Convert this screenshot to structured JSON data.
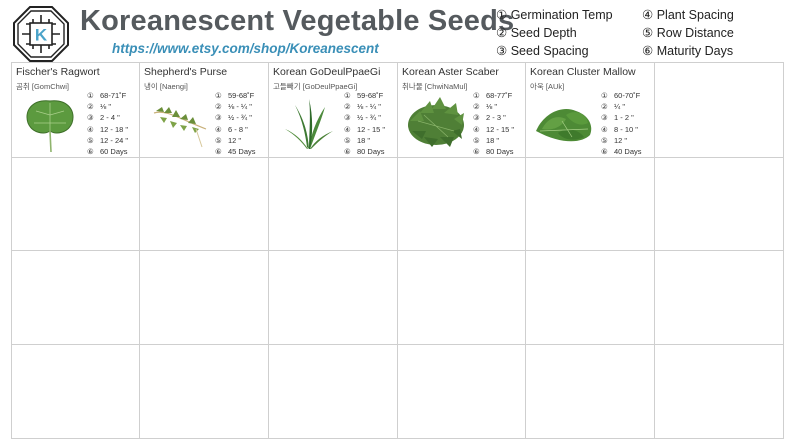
{
  "header": {
    "logo_letter": "K",
    "title": "Koreanescent Vegetable Seeds",
    "url": "https://www.etsy.com/shop/Koreanescent"
  },
  "legend": [
    {
      "num": "①",
      "label": "Germination Temp"
    },
    {
      "num": "②",
      "label": "Seed Depth"
    },
    {
      "num": "③",
      "label": "Seed Spacing"
    },
    {
      "num": "④",
      "label": "Plant Spacing"
    },
    {
      "num": "⑤",
      "label": "Row Distance"
    },
    {
      "num": "⑥",
      "label": "Maturity Days"
    }
  ],
  "plants": [
    {
      "name": "Fischer's Ragwort",
      "korean": "곰취 [GomChwi]",
      "stats": [
        {
          "num": "①",
          "value": "68-71˚F"
        },
        {
          "num": "②",
          "value": "⅛ \""
        },
        {
          "num": "③",
          "value": "2 - 4 \""
        },
        {
          "num": "④",
          "value": "12 - 18 \""
        },
        {
          "num": "⑤",
          "value": "12 - 24 \""
        },
        {
          "num": "⑥",
          "value": "60 Days"
        }
      ]
    },
    {
      "name": "Shepherd's Purse",
      "korean": "냉이 [Naengi]",
      "stats": [
        {
          "num": "①",
          "value": "59-68˚F"
        },
        {
          "num": "②",
          "value": "⅛ - ¼ \""
        },
        {
          "num": "③",
          "value": "½ - ¾ \""
        },
        {
          "num": "④",
          "value": "6 - 8 \""
        },
        {
          "num": "⑤",
          "value": "12 \""
        },
        {
          "num": "⑥",
          "value": "45 Days"
        }
      ]
    },
    {
      "name": "Korean GoDeulPpaeGi",
      "korean": "고들빼기 [GoDeulPpaeGi]",
      "stats": [
        {
          "num": "①",
          "value": "59-68˚F"
        },
        {
          "num": "②",
          "value": "⅛ - ¼ \""
        },
        {
          "num": "③",
          "value": "½ - ¾ \""
        },
        {
          "num": "④",
          "value": "12 - 15 \""
        },
        {
          "num": "⑤",
          "value": "18 \""
        },
        {
          "num": "⑥",
          "value": "80 Days"
        }
      ]
    },
    {
      "name": "Korean Aster Scaber",
      "korean": "취나물 [ChwiNaMul]",
      "stats": [
        {
          "num": "①",
          "value": "68-77˚F"
        },
        {
          "num": "②",
          "value": "⅛ \""
        },
        {
          "num": "③",
          "value": "2 - 3 \""
        },
        {
          "num": "④",
          "value": "12 - 15 \""
        },
        {
          "num": "⑤",
          "value": "18 \""
        },
        {
          "num": "⑥",
          "value": "80 Days"
        }
      ]
    },
    {
      "name": "Korean Cluster Mallow",
      "korean": "아욱 [AUk]",
      "stats": [
        {
          "num": "①",
          "value": "60-70˚F"
        },
        {
          "num": "②",
          "value": "¼ \""
        },
        {
          "num": "③",
          "value": "1 - 2 \""
        },
        {
          "num": "④",
          "value": "8 - 10 \""
        },
        {
          "num": "⑤",
          "value": "12 \""
        },
        {
          "num": "⑥",
          "value": "40 Days"
        }
      ]
    }
  ],
  "colors": {
    "title": "#555a5e",
    "url": "#3a8fb7",
    "logo_accent": "#4aa3c9",
    "grid_line": "#cfcfcf",
    "leaf_green": "#4f8a3a"
  },
  "icons": {
    "logo": "korean-lattice-k-logo",
    "plant_1": "ragwort-leaf-icon",
    "plant_2": "shepherds-purse-icon",
    "plant_3": "godeulppaegi-icon",
    "plant_4": "aster-scaber-icon",
    "plant_5": "cluster-mallow-icon"
  }
}
